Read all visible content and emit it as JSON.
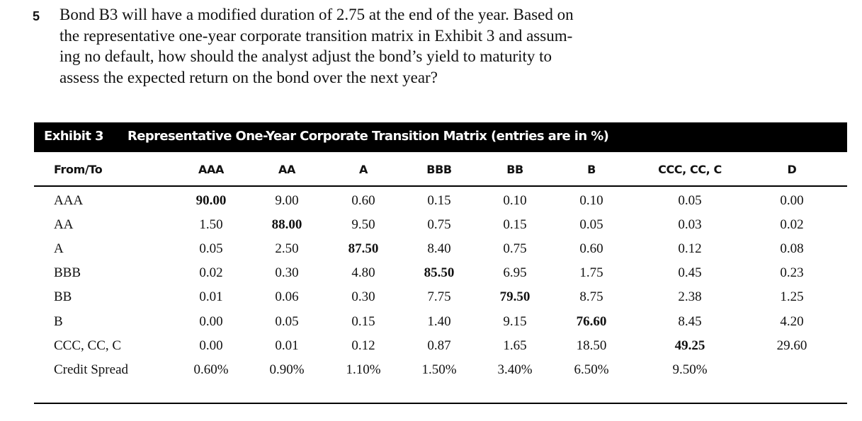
{
  "question": {
    "number": "5",
    "lines": [
      "Bond B3 will have a modified duration of 2.75 at the end of the year. Based on",
      "the representative one-year corporate transition matrix in Exhibit 3 and assum-",
      "ing no default, how should the analyst adjust the bond’s yield to maturity to",
      "assess the expected return on the bond over the next year?"
    ]
  },
  "exhibit": {
    "label": "Exhibit 3",
    "title": "Representative One-Year Corporate Transition Matrix (entries are in %)"
  },
  "table": {
    "row_header": "From/To",
    "columns": [
      "AAA",
      "AA",
      "A",
      "BBB",
      "BB",
      "B",
      "CCC, CC, C",
      "D"
    ],
    "rows": [
      {
        "label": "AAA",
        "values": [
          "90.00",
          "9.00",
          "0.60",
          "0.15",
          "0.10",
          "0.10",
          "0.05",
          "0.00"
        ],
        "bold_index": 0
      },
      {
        "label": "AA",
        "values": [
          "1.50",
          "88.00",
          "9.50",
          "0.75",
          "0.15",
          "0.05",
          "0.03",
          "0.02"
        ],
        "bold_index": 1
      },
      {
        "label": "A",
        "values": [
          "0.05",
          "2.50",
          "87.50",
          "8.40",
          "0.75",
          "0.60",
          "0.12",
          "0.08"
        ],
        "bold_index": 2
      },
      {
        "label": "BBB",
        "values": [
          "0.02",
          "0.30",
          "4.80",
          "85.50",
          "6.95",
          "1.75",
          "0.45",
          "0.23"
        ],
        "bold_index": 3
      },
      {
        "label": "BB",
        "values": [
          "0.01",
          "0.06",
          "0.30",
          "7.75",
          "79.50",
          "8.75",
          "2.38",
          "1.25"
        ],
        "bold_index": 4
      },
      {
        "label": "B",
        "values": [
          "0.00",
          "0.05",
          "0.15",
          "1.40",
          "9.15",
          "76.60",
          "8.45",
          "4.20"
        ],
        "bold_index": 5
      },
      {
        "label": "CCC, CC, C",
        "values": [
          "0.00",
          "0.01",
          "0.12",
          "0.87",
          "1.65",
          "18.50",
          "49.25",
          "29.60"
        ],
        "bold_index": 6
      },
      {
        "label": "Credit Spread",
        "values": [
          "0.60%",
          "0.90%",
          "1.10%",
          "1.50%",
          "3.40%",
          "6.50%",
          "9.50%",
          ""
        ],
        "bold_index": -1
      }
    ]
  }
}
